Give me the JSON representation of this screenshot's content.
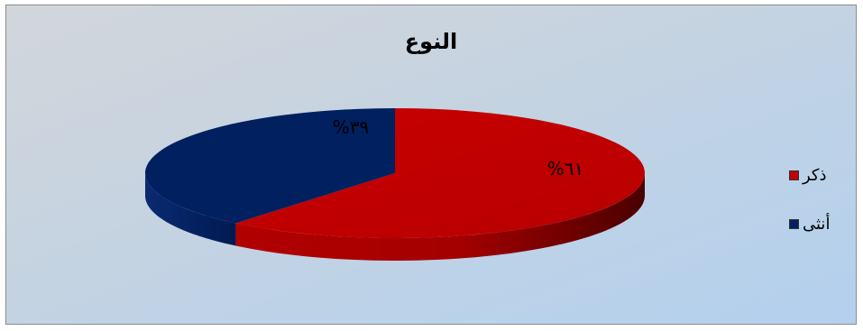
{
  "chart_data": {
    "type": "pie",
    "title": "النوع",
    "categories": [
      "ذكر",
      "أنثى"
    ],
    "values": [
      61,
      39
    ],
    "data_labels": [
      "%٦١",
      "%٣٩"
    ],
    "colors": [
      "#c00000",
      "#002060"
    ],
    "legend_position": "right",
    "style": "3d"
  }
}
